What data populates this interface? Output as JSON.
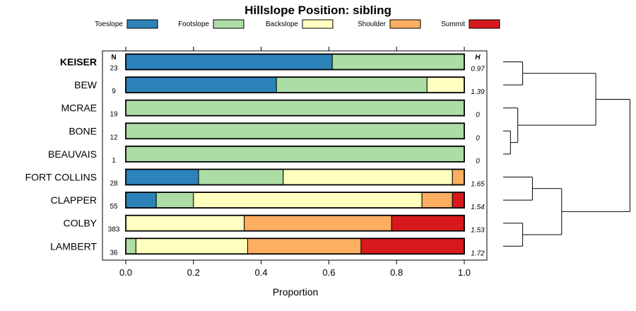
{
  "chart_data": {
    "type": "bar",
    "orientation": "horizontal",
    "stacked": true,
    "title": "Hillslope Position: sibling",
    "xlabel": "Proportion",
    "xlim": [
      0,
      1
    ],
    "xticks": [
      "0.0",
      "0.2",
      "0.4",
      "0.6",
      "0.8",
      "1.0"
    ],
    "xtick_values": [
      0,
      0.2,
      0.4,
      0.6,
      0.8,
      1.0
    ],
    "legend_position": "top",
    "n_header": "N",
    "h_header": "H",
    "classes": [
      {
        "name": "Toeslope",
        "color": "#2b83ba"
      },
      {
        "name": "Footslope",
        "color": "#abdda4"
      },
      {
        "name": "Backslope",
        "color": "#ffffbf"
      },
      {
        "name": "Shoulder",
        "color": "#fdae61"
      },
      {
        "name": "Summit",
        "color": "#d7191c"
      }
    ],
    "rows": [
      {
        "label": "KEISER",
        "bold": true,
        "n": "23",
        "h": "0.97",
        "values": [
          0.61,
          0.39,
          0,
          0,
          0
        ]
      },
      {
        "label": "BEW",
        "bold": false,
        "n": "9",
        "h": "1.39",
        "values": [
          0.445,
          0.445,
          0.11,
          0,
          0
        ]
      },
      {
        "label": "MCRAE",
        "bold": false,
        "n": "19",
        "h": "0",
        "values": [
          0,
          1.0,
          0,
          0,
          0
        ]
      },
      {
        "label": "BONE",
        "bold": false,
        "n": "12",
        "h": "0",
        "values": [
          0,
          1.0,
          0,
          0,
          0
        ]
      },
      {
        "label": "BEAUVAIS",
        "bold": false,
        "n": "1",
        "h": "0",
        "values": [
          0,
          1.0,
          0,
          0,
          0
        ]
      },
      {
        "label": "FORT COLLINS",
        "bold": false,
        "n": "28",
        "h": "1.65",
        "values": [
          0.215,
          0.25,
          0.5,
          0.035,
          0
        ]
      },
      {
        "label": "CLAPPER",
        "bold": false,
        "n": "55",
        "h": "1.54",
        "values": [
          0.09,
          0.11,
          0.675,
          0.09,
          0.035
        ]
      },
      {
        "label": "COLBY",
        "bold": false,
        "n": "383",
        "h": "1.53",
        "values": [
          0,
          0,
          0.35,
          0.435,
          0.215
        ]
      },
      {
        "label": "LAMBERT",
        "bold": false,
        "n": "36",
        "h": "1.72",
        "values": [
          0,
          0.03,
          0.33,
          0.335,
          0.305
        ]
      }
    ],
    "dendrogram": {
      "merges": [
        {
          "a": 0,
          "b": 1,
          "height": 0.08
        },
        {
          "a": 3,
          "b": 4,
          "height": 0.03
        },
        {
          "a": 2,
          "b": -2,
          "height": 0.06
        },
        {
          "a": 7,
          "b": 8,
          "height": 0.08
        },
        {
          "a": 5,
          "b": 6,
          "height": 0.12
        },
        {
          "a": -1,
          "b": -3,
          "height": 0.38
        },
        {
          "a": -5,
          "b": -4,
          "height": 0.24
        },
        {
          "a": -6,
          "b": -7,
          "height": 0.52
        }
      ]
    }
  }
}
